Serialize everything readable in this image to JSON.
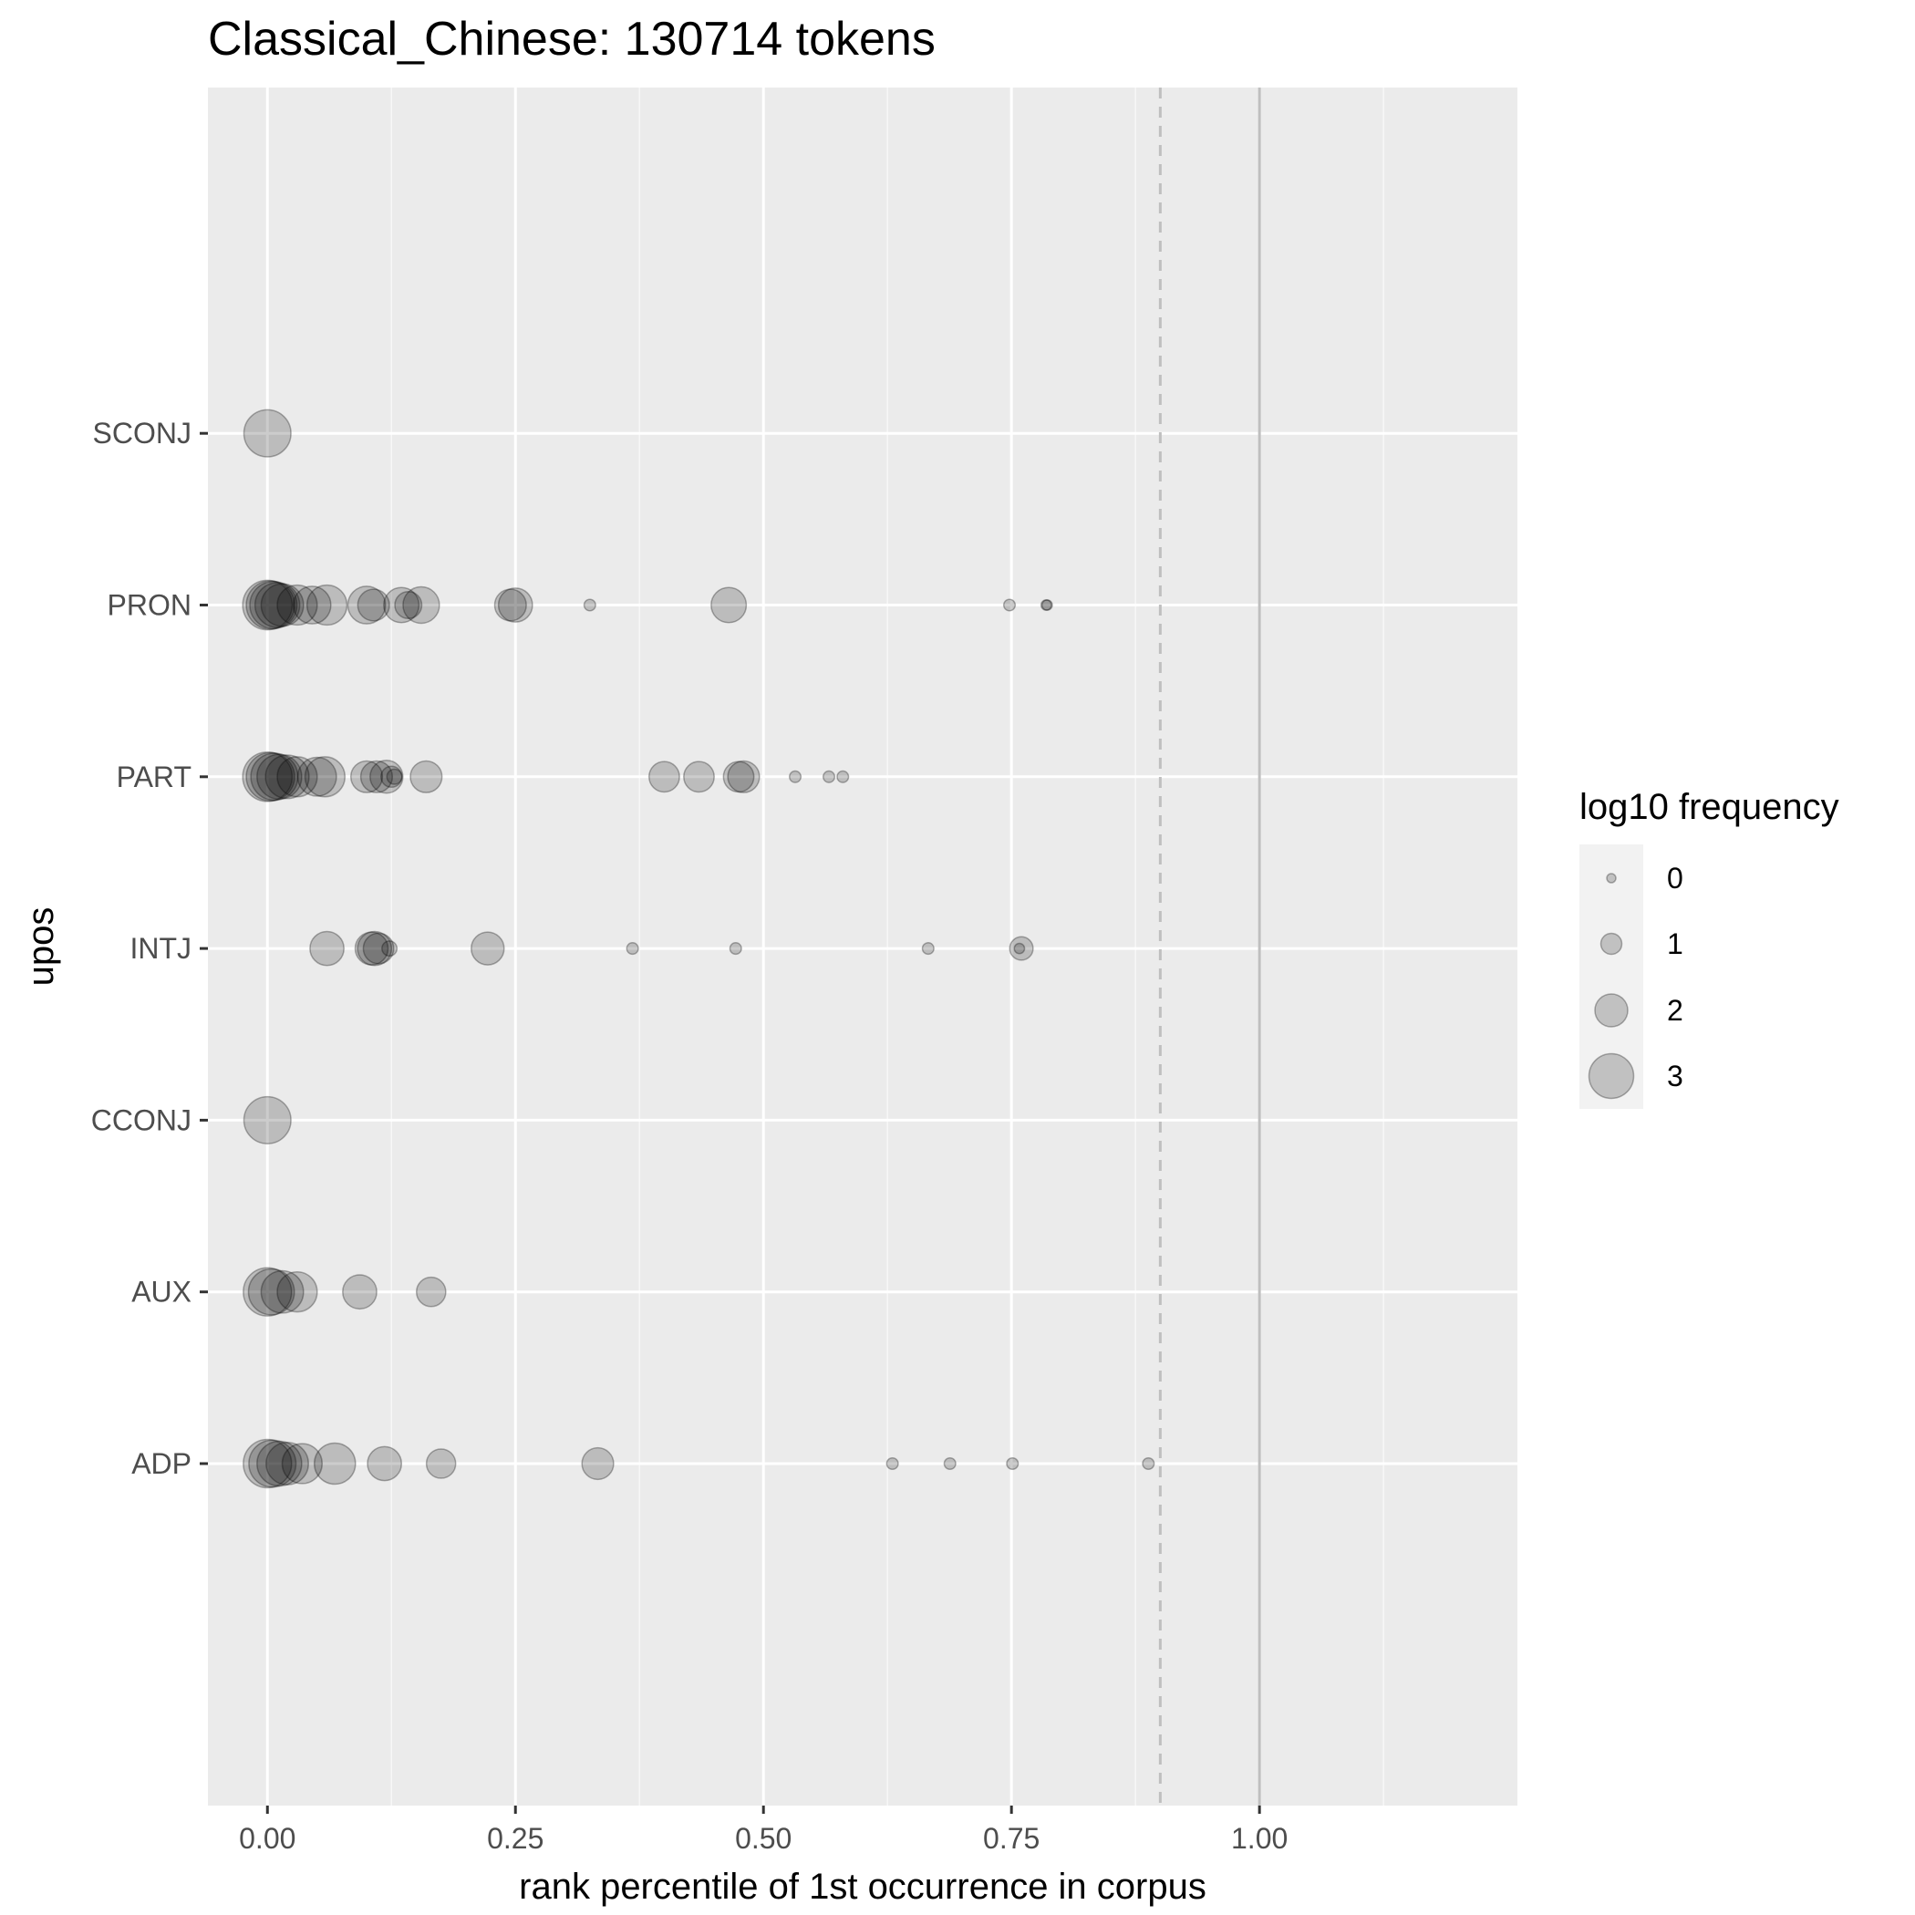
{
  "chart_data": {
    "type": "scatter",
    "title": "Classical_Chinese: 130714 tokens",
    "xlabel": "rank percentile of 1st occurrence in corpus",
    "ylabel": "upos",
    "xlim": [
      -0.06,
      1.26
    ],
    "x_ticks": [
      "0.00",
      "0.25",
      "0.50",
      "0.75",
      "1.00"
    ],
    "x_tick_values": [
      0,
      0.25,
      0.5,
      0.75,
      1.0
    ],
    "categories": [
      "ADP",
      "AUX",
      "CCONJ",
      "INTJ",
      "PART",
      "PRON",
      "SCONJ"
    ],
    "reference_lines": [
      {
        "x": 0.9,
        "style": "dashed",
        "color": "#bfbfbf"
      },
      {
        "x": 1.0,
        "style": "solid",
        "color": "#bfbfbf"
      }
    ],
    "grid": true,
    "legend": {
      "title": "log10 frequency",
      "position": "right",
      "entries": [
        {
          "label": "0",
          "value": 0
        },
        {
          "label": "1",
          "value": 1
        },
        {
          "label": "2",
          "value": 2
        },
        {
          "label": "3",
          "value": 3
        }
      ]
    },
    "points": [
      {
        "upos": "SCONJ",
        "x": 0.0,
        "log10_freq": 3.2
      },
      {
        "upos": "PRON",
        "x": 0.0,
        "log10_freq": 3.4
      },
      {
        "upos": "PRON",
        "x": 0.003,
        "log10_freq": 3.3
      },
      {
        "upos": "PRON",
        "x": 0.006,
        "log10_freq": 3.2
      },
      {
        "upos": "PRON",
        "x": 0.01,
        "log10_freq": 3.0
      },
      {
        "upos": "PRON",
        "x": 0.015,
        "log10_freq": 2.8
      },
      {
        "upos": "PRON",
        "x": 0.03,
        "log10_freq": 2.6
      },
      {
        "upos": "PRON",
        "x": 0.045,
        "log10_freq": 2.4
      },
      {
        "upos": "PRON",
        "x": 0.06,
        "log10_freq": 2.6
      },
      {
        "upos": "PRON",
        "x": 0.1,
        "log10_freq": 2.4
      },
      {
        "upos": "PRON",
        "x": 0.107,
        "log10_freq": 1.9
      },
      {
        "upos": "PRON",
        "x": 0.135,
        "log10_freq": 2.2
      },
      {
        "upos": "PRON",
        "x": 0.142,
        "log10_freq": 1.5
      },
      {
        "upos": "PRON",
        "x": 0.155,
        "log10_freq": 2.3
      },
      {
        "upos": "PRON",
        "x": 0.245,
        "log10_freq": 1.9
      },
      {
        "upos": "PRON",
        "x": 0.25,
        "log10_freq": 2.1
      },
      {
        "upos": "PRON",
        "x": 0.325,
        "log10_freq": 0.2
      },
      {
        "upos": "PRON",
        "x": 0.465,
        "log10_freq": 2.2
      },
      {
        "upos": "PRON",
        "x": 0.748,
        "log10_freq": 0.2
      },
      {
        "upos": "PRON",
        "x": 0.785,
        "log10_freq": 0.1
      },
      {
        "upos": "PRON",
        "x": 0.786,
        "log10_freq": 0.1
      },
      {
        "upos": "PART",
        "x": 0.0,
        "log10_freq": 3.4
      },
      {
        "upos": "PART",
        "x": 0.003,
        "log10_freq": 3.3
      },
      {
        "upos": "PART",
        "x": 0.007,
        "log10_freq": 3.2
      },
      {
        "upos": "PART",
        "x": 0.012,
        "log10_freq": 3.0
      },
      {
        "upos": "PART",
        "x": 0.02,
        "log10_freq": 2.9
      },
      {
        "upos": "PART",
        "x": 0.03,
        "log10_freq": 2.6
      },
      {
        "upos": "PART",
        "x": 0.05,
        "log10_freq": 2.5
      },
      {
        "upos": "PART",
        "x": 0.058,
        "log10_freq": 2.6
      },
      {
        "upos": "PART",
        "x": 0.1,
        "log10_freq": 1.9
      },
      {
        "upos": "PART",
        "x": 0.11,
        "log10_freq": 1.9
      },
      {
        "upos": "PART",
        "x": 0.12,
        "log10_freq": 2.0
      },
      {
        "upos": "PART",
        "x": 0.125,
        "log10_freq": 1.0
      },
      {
        "upos": "PART",
        "x": 0.128,
        "log10_freq": 0.5
      },
      {
        "upos": "PART",
        "x": 0.16,
        "log10_freq": 1.9
      },
      {
        "upos": "PART",
        "x": 0.4,
        "log10_freq": 1.8
      },
      {
        "upos": "PART",
        "x": 0.435,
        "log10_freq": 1.8
      },
      {
        "upos": "PART",
        "x": 0.475,
        "log10_freq": 1.8
      },
      {
        "upos": "PART",
        "x": 0.48,
        "log10_freq": 1.9
      },
      {
        "upos": "PART",
        "x": 0.532,
        "log10_freq": 0.2
      },
      {
        "upos": "PART",
        "x": 0.566,
        "log10_freq": 0.2
      },
      {
        "upos": "PART",
        "x": 0.58,
        "log10_freq": 0.2
      },
      {
        "upos": "INTJ",
        "x": 0.06,
        "log10_freq": 2.1
      },
      {
        "upos": "INTJ",
        "x": 0.105,
        "log10_freq": 2.0
      },
      {
        "upos": "INTJ",
        "x": 0.108,
        "log10_freq": 2.1
      },
      {
        "upos": "INTJ",
        "x": 0.112,
        "log10_freq": 1.8
      },
      {
        "upos": "INTJ",
        "x": 0.123,
        "log10_freq": 0.5
      },
      {
        "upos": "INTJ",
        "x": 0.222,
        "log10_freq": 2.0
      },
      {
        "upos": "INTJ",
        "x": 0.368,
        "log10_freq": 0.2
      },
      {
        "upos": "INTJ",
        "x": 0.472,
        "log10_freq": 0.2
      },
      {
        "upos": "INTJ",
        "x": 0.666,
        "log10_freq": 0.2
      },
      {
        "upos": "INTJ",
        "x": 0.76,
        "log10_freq": 1.2
      },
      {
        "upos": "INTJ",
        "x": 0.758,
        "log10_freq": 0.1
      },
      {
        "upos": "CCONJ",
        "x": 0.0,
        "log10_freq": 3.2
      },
      {
        "upos": "AUX",
        "x": 0.0,
        "log10_freq": 3.3
      },
      {
        "upos": "AUX",
        "x": 0.004,
        "log10_freq": 3.1
      },
      {
        "upos": "AUX",
        "x": 0.015,
        "log10_freq": 2.8
      },
      {
        "upos": "AUX",
        "x": 0.03,
        "log10_freq": 2.6
      },
      {
        "upos": "AUX",
        "x": 0.093,
        "log10_freq": 2.1
      },
      {
        "upos": "AUX",
        "x": 0.165,
        "log10_freq": 1.7
      },
      {
        "upos": "ADP",
        "x": 0.0,
        "log10_freq": 3.3
      },
      {
        "upos": "ADP",
        "x": 0.005,
        "log10_freq": 3.2
      },
      {
        "upos": "ADP",
        "x": 0.012,
        "log10_freq": 3.0
      },
      {
        "upos": "ADP",
        "x": 0.02,
        "log10_freq": 2.8
      },
      {
        "upos": "ADP",
        "x": 0.035,
        "log10_freq": 2.6
      },
      {
        "upos": "ADP",
        "x": 0.068,
        "log10_freq": 2.7
      },
      {
        "upos": "ADP",
        "x": 0.118,
        "log10_freq": 2.1
      },
      {
        "upos": "ADP",
        "x": 0.175,
        "log10_freq": 1.7
      },
      {
        "upos": "ADP",
        "x": 0.333,
        "log10_freq": 1.9
      },
      {
        "upos": "ADP",
        "x": 0.63,
        "log10_freq": 0.2
      },
      {
        "upos": "ADP",
        "x": 0.688,
        "log10_freq": 0.2
      },
      {
        "upos": "ADP",
        "x": 0.751,
        "log10_freq": 0.2
      },
      {
        "upos": "ADP",
        "x": 0.888,
        "log10_freq": 0.2
      }
    ]
  }
}
